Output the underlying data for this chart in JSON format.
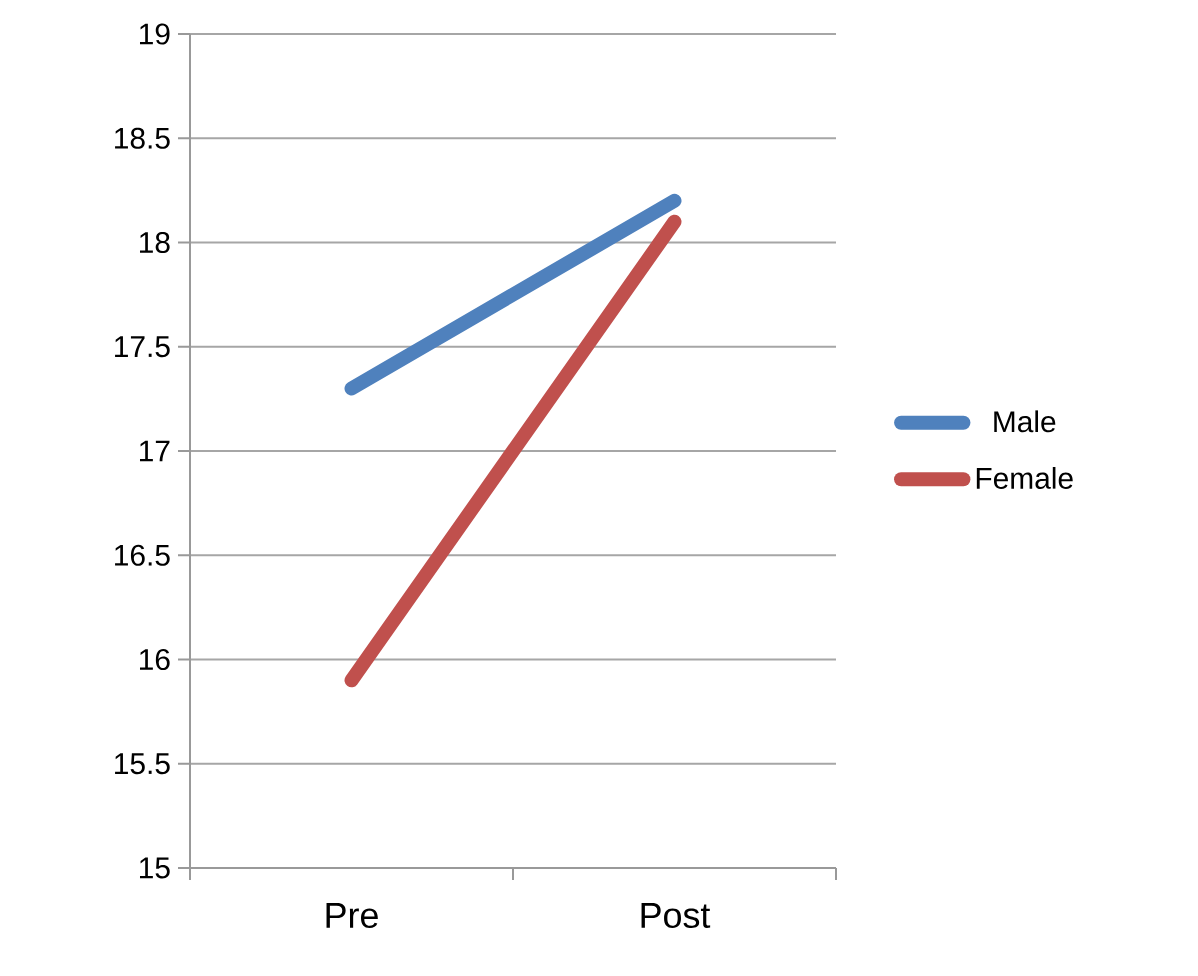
{
  "chart_data": {
    "type": "line",
    "categories": [
      "Pre",
      "Post"
    ],
    "series": [
      {
        "name": "Male",
        "color": "#4f81bd",
        "values": [
          17.3,
          18.2
        ]
      },
      {
        "name": "Female",
        "color": "#c0504d",
        "values": [
          15.9,
          18.1
        ]
      }
    ],
    "ylim": [
      15,
      19
    ],
    "yticks": [
      15,
      15.5,
      16,
      16.5,
      17,
      17.5,
      18,
      18.5,
      19
    ],
    "grid": "y",
    "legend": "right",
    "marker": "none",
    "line_style": "solid"
  }
}
